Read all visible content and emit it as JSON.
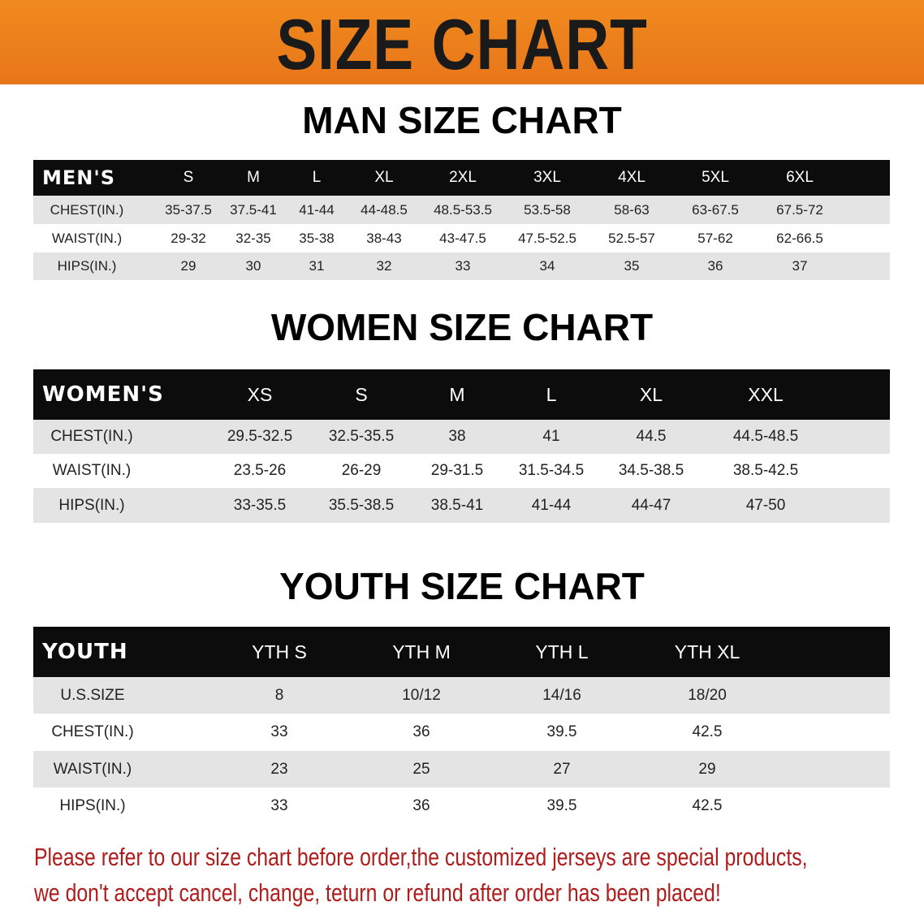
{
  "banner_title": "SIZE CHART",
  "colors": {
    "banner": "#ee8220",
    "header_bg": "#0c0c0c",
    "row_gray": "#e4e4e4",
    "note_text": "#b01c1c"
  },
  "chart_data": [
    {
      "type": "table",
      "title": "MAN SIZE CHART",
      "corner": "MEN'S",
      "columns": [
        "S",
        "M",
        "L",
        "XL",
        "2XL",
        "3XL",
        "4XL",
        "5XL",
        "6XL"
      ],
      "rows": [
        {
          "label": "CHEST(IN.)",
          "values": [
            "35-37.5",
            "37.5-41",
            "41-44",
            "44-48.5",
            "48.5-53.5",
            "53.5-58",
            "58-63",
            "63-67.5",
            "67.5-72"
          ]
        },
        {
          "label": "WAIST(IN.)",
          "values": [
            "29-32",
            "32-35",
            "35-38",
            "38-43",
            "43-47.5",
            "47.5-52.5",
            "52.5-57",
            "57-62",
            "62-66.5"
          ]
        },
        {
          "label": "HIPS(IN.)",
          "values": [
            "29",
            "30",
            "31",
            "32",
            "33",
            "34",
            "35",
            "36",
            "37"
          ]
        }
      ]
    },
    {
      "type": "table",
      "title": "WOMEN SIZE CHART",
      "corner": "WOMEN'S",
      "columns": [
        "XS",
        "S",
        "M",
        "L",
        "XL",
        "XXL"
      ],
      "rows": [
        {
          "label": "CHEST(IN.)",
          "values": [
            "29.5-32.5",
            "32.5-35.5",
            "38",
            "41",
            "44.5",
            "44.5-48.5"
          ]
        },
        {
          "label": "WAIST(IN.)",
          "values": [
            "23.5-26",
            "26-29",
            "29-31.5",
            "31.5-34.5",
            "34.5-38.5",
            "38.5-42.5"
          ]
        },
        {
          "label": "HIPS(IN.)",
          "values": [
            "33-35.5",
            "35.5-38.5",
            "38.5-41",
            "41-44",
            "44-47",
            "47-50"
          ]
        }
      ]
    },
    {
      "type": "table",
      "title": "YOUTH SIZE CHART",
      "corner": "YOUTH",
      "columns": [
        "YTH S",
        "YTH M",
        "YTH L",
        "YTH XL"
      ],
      "rows": [
        {
          "label": "U.S.SIZE",
          "values": [
            "8",
            "10/12",
            "14/16",
            "18/20"
          ]
        },
        {
          "label": "CHEST(IN.)",
          "values": [
            "33",
            "36",
            "39.5",
            "42.5"
          ]
        },
        {
          "label": "WAIST(IN.)",
          "values": [
            "23",
            "25",
            "27",
            "29"
          ]
        },
        {
          "label": "HIPS(IN.)",
          "values": [
            "33",
            "36",
            "39.5",
            "42.5"
          ]
        }
      ]
    }
  ],
  "note": {
    "line1": "Please refer to our size chart before order,the customized jerseys are special products,",
    "line2": "we don't accept cancel, change, teturn or refund after order has been placed!"
  }
}
